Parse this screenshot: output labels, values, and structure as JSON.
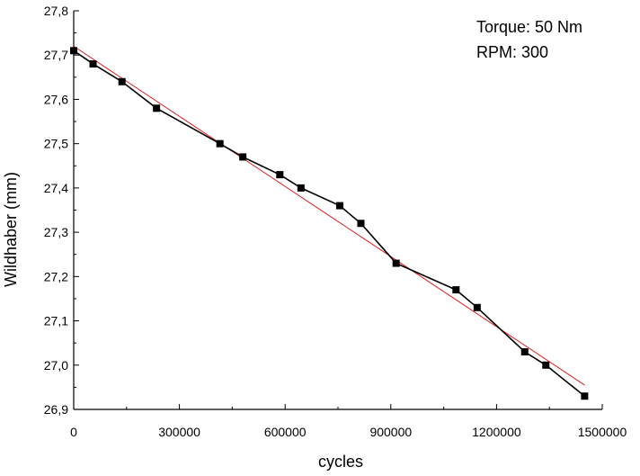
{
  "chart_data": {
    "type": "line",
    "title": "",
    "xlabel": "cycles",
    "ylabel": "Wildhaber (mm)",
    "xlim": [
      0,
      1500000
    ],
    "ylim": [
      26.9,
      27.8
    ],
    "x_ticks": [
      0,
      300000,
      600000,
      900000,
      1200000,
      1500000
    ],
    "x_tick_labels": [
      "0",
      "300000",
      "600000",
      "900000",
      "1200000",
      "1500000"
    ],
    "y_ticks": [
      26.9,
      27.0,
      27.1,
      27.2,
      27.3,
      27.4,
      27.5,
      27.6,
      27.7,
      27.8
    ],
    "y_tick_labels": [
      "26,9",
      "27,0",
      "27,1",
      "27,2",
      "27,3",
      "27,4",
      "27,5",
      "27,6",
      "27,7",
      "27,8"
    ],
    "grid": false,
    "legend": "none",
    "annotations": [
      "Torque: 50 Nm",
      "RPM: 300"
    ],
    "series": [
      {
        "kind": "line-with-square-markers",
        "color": "#000000",
        "x": [
          0,
          55000,
          137000,
          235000,
          415000,
          480000,
          585000,
          645000,
          755000,
          815000,
          915000,
          1085000,
          1145000,
          1280000,
          1340000,
          1450000
        ],
        "y": [
          27.71,
          27.68,
          27.64,
          27.58,
          27.5,
          27.47,
          27.43,
          27.4,
          27.36,
          27.32,
          27.23,
          27.17,
          27.13,
          27.03,
          27.0,
          26.93
        ]
      },
      {
        "kind": "linear-fit",
        "color": "#e02020",
        "x": [
          0,
          1450000
        ],
        "y": [
          27.72,
          26.955
        ]
      }
    ]
  }
}
